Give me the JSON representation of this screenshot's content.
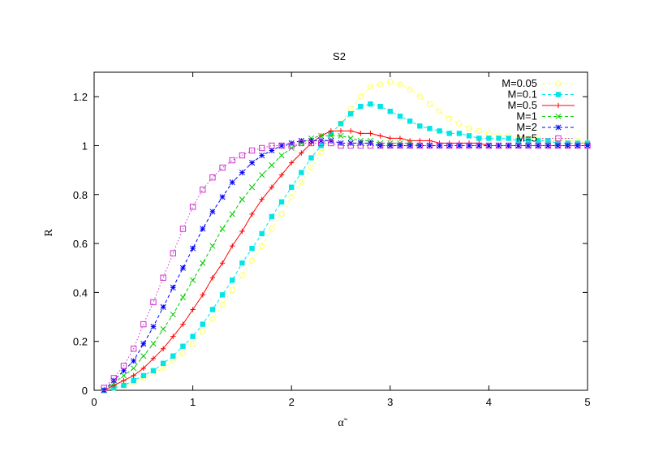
{
  "chart_data": {
    "type": "line",
    "title": "S2",
    "xlabel": "α̃",
    "ylabel": "R",
    "xlim": [
      0,
      5
    ],
    "ylim": [
      0,
      1.3
    ],
    "xticks": [
      0,
      1,
      2,
      3,
      4,
      5
    ],
    "yticks": [
      0,
      0.2,
      0.4,
      0.6,
      0.8,
      1,
      1.2
    ],
    "xtick_labels": [
      "0",
      "1",
      "2",
      "3",
      "4",
      "5"
    ],
    "ytick_labels": [
      "0",
      "0.2",
      "0.4",
      "0.6",
      "0.8",
      "1",
      "1.2"
    ],
    "legend_position": "top-right",
    "grid": false,
    "series": [
      {
        "name": "M=0.05",
        "color": "#ffff66",
        "marker": "open-circle",
        "line": "dashed",
        "x": [
          0.1,
          0.2,
          0.3,
          0.4,
          0.5,
          0.6,
          0.7,
          0.8,
          0.9,
          1.0,
          1.1,
          1.2,
          1.3,
          1.4,
          1.5,
          1.6,
          1.7,
          1.8,
          1.9,
          2.0,
          2.1,
          2.2,
          2.3,
          2.4,
          2.5,
          2.6,
          2.7,
          2.8,
          2.9,
          3.0,
          3.1,
          3.2,
          3.3,
          3.4,
          3.5,
          3.6,
          3.7,
          3.8,
          3.9,
          4.0,
          4.1,
          4.2,
          4.3,
          4.4,
          4.5,
          4.6,
          4.7,
          4.8,
          4.9,
          5.0
        ],
        "y": [
          0.0,
          0.01,
          0.02,
          0.03,
          0.05,
          0.07,
          0.09,
          0.12,
          0.15,
          0.19,
          0.24,
          0.29,
          0.35,
          0.41,
          0.47,
          0.53,
          0.59,
          0.66,
          0.72,
          0.79,
          0.85,
          0.91,
          0.97,
          1.03,
          1.09,
          1.15,
          1.2,
          1.24,
          1.25,
          1.26,
          1.25,
          1.23,
          1.2,
          1.17,
          1.14,
          1.11,
          1.09,
          1.07,
          1.06,
          1.05,
          1.04,
          1.04,
          1.03,
          1.03,
          1.03,
          1.02,
          1.02,
          1.02,
          1.02,
          1.01
        ]
      },
      {
        "name": "M=0.1",
        "color": "#00e5e5",
        "marker": "filled-square",
        "line": "dashed",
        "x": [
          0.1,
          0.2,
          0.3,
          0.4,
          0.5,
          0.6,
          0.7,
          0.8,
          0.9,
          1.0,
          1.1,
          1.2,
          1.3,
          1.4,
          1.5,
          1.6,
          1.7,
          1.8,
          1.9,
          2.0,
          2.1,
          2.2,
          2.3,
          2.4,
          2.5,
          2.6,
          2.7,
          2.8,
          2.9,
          3.0,
          3.1,
          3.2,
          3.3,
          3.4,
          3.5,
          3.6,
          3.7,
          3.8,
          3.9,
          4.0,
          4.1,
          4.2,
          4.3,
          4.4,
          4.5,
          4.6,
          4.7,
          4.8,
          4.9,
          5.0
        ],
        "y": [
          0.0,
          0.01,
          0.02,
          0.04,
          0.06,
          0.08,
          0.11,
          0.14,
          0.18,
          0.22,
          0.27,
          0.33,
          0.39,
          0.45,
          0.52,
          0.58,
          0.64,
          0.71,
          0.77,
          0.83,
          0.89,
          0.95,
          1.0,
          1.05,
          1.09,
          1.13,
          1.16,
          1.17,
          1.16,
          1.14,
          1.12,
          1.1,
          1.08,
          1.07,
          1.06,
          1.05,
          1.05,
          1.04,
          1.03,
          1.03,
          1.03,
          1.03,
          1.02,
          1.02,
          1.02,
          1.02,
          1.01,
          1.01,
          1.01,
          1.01
        ]
      },
      {
        "name": "M=0.5",
        "color": "#ff0000",
        "marker": "plus",
        "line": "solid",
        "x": [
          0.1,
          0.2,
          0.3,
          0.4,
          0.5,
          0.6,
          0.7,
          0.8,
          0.9,
          1.0,
          1.1,
          1.2,
          1.3,
          1.4,
          1.5,
          1.6,
          1.7,
          1.8,
          1.9,
          2.0,
          2.1,
          2.2,
          2.3,
          2.4,
          2.5,
          2.6,
          2.7,
          2.8,
          2.9,
          3.0,
          3.1,
          3.2,
          3.3,
          3.4,
          3.5,
          3.6,
          3.7,
          3.8,
          3.9,
          4.0,
          4.1,
          4.2,
          4.3,
          4.4,
          4.5,
          4.6,
          4.7,
          4.8,
          4.9,
          5.0
        ],
        "y": [
          0.0,
          0.02,
          0.04,
          0.06,
          0.09,
          0.13,
          0.17,
          0.22,
          0.27,
          0.33,
          0.39,
          0.46,
          0.52,
          0.59,
          0.65,
          0.72,
          0.78,
          0.83,
          0.88,
          0.93,
          0.97,
          1.01,
          1.04,
          1.06,
          1.06,
          1.06,
          1.05,
          1.05,
          1.04,
          1.03,
          1.03,
          1.02,
          1.02,
          1.02,
          1.01,
          1.01,
          1.01,
          1.01,
          1.01,
          1.0,
          1.0,
          1.0,
          1.0,
          1.0,
          1.0,
          1.0,
          1.0,
          1.0,
          1.0,
          1.0
        ]
      },
      {
        "name": "M=1",
        "color": "#00cc00",
        "marker": "cross",
        "line": "dashed",
        "x": [
          0.1,
          0.2,
          0.3,
          0.4,
          0.5,
          0.6,
          0.7,
          0.8,
          0.9,
          1.0,
          1.1,
          1.2,
          1.3,
          1.4,
          1.5,
          1.6,
          1.7,
          1.8,
          1.9,
          2.0,
          2.1,
          2.2,
          2.3,
          2.4,
          2.5,
          2.6,
          2.7,
          2.8,
          2.9,
          3.0,
          3.1,
          3.2,
          3.3,
          3.4,
          3.5,
          3.6,
          3.7,
          3.8,
          3.9,
          4.0,
          4.1,
          4.2,
          4.3,
          4.4,
          4.5,
          4.6,
          4.7,
          4.8,
          4.9,
          5.0
        ],
        "y": [
          0.0,
          0.03,
          0.06,
          0.09,
          0.14,
          0.19,
          0.25,
          0.31,
          0.38,
          0.45,
          0.52,
          0.59,
          0.66,
          0.72,
          0.78,
          0.83,
          0.88,
          0.92,
          0.96,
          0.99,
          1.01,
          1.03,
          1.04,
          1.04,
          1.04,
          1.03,
          1.02,
          1.02,
          1.01,
          1.01,
          1.01,
          1.01,
          1.0,
          1.0,
          1.0,
          1.0,
          1.0,
          1.0,
          1.0,
          1.0,
          1.0,
          1.0,
          1.0,
          1.0,
          1.0,
          1.0,
          1.0,
          1.0,
          1.0,
          1.0
        ]
      },
      {
        "name": "M=2",
        "color": "#0000ff",
        "marker": "star",
        "line": "dashed",
        "x": [
          0.1,
          0.2,
          0.3,
          0.4,
          0.5,
          0.6,
          0.7,
          0.8,
          0.9,
          1.0,
          1.1,
          1.2,
          1.3,
          1.4,
          1.5,
          1.6,
          1.7,
          1.8,
          1.9,
          2.0,
          2.1,
          2.2,
          2.3,
          2.4,
          2.5,
          2.6,
          2.7,
          2.8,
          2.9,
          3.0,
          3.1,
          3.2,
          3.3,
          3.4,
          3.5,
          3.6,
          3.7,
          3.8,
          3.9,
          4.0,
          4.1,
          4.2,
          4.3,
          4.4,
          4.5,
          4.6,
          4.7,
          4.8,
          4.9,
          5.0
        ],
        "y": [
          0.0,
          0.04,
          0.08,
          0.12,
          0.19,
          0.26,
          0.34,
          0.42,
          0.5,
          0.58,
          0.66,
          0.73,
          0.79,
          0.85,
          0.89,
          0.93,
          0.96,
          0.98,
          1.0,
          1.01,
          1.02,
          1.02,
          1.02,
          1.02,
          1.01,
          1.01,
          1.01,
          1.01,
          1.0,
          1.0,
          1.0,
          1.0,
          1.0,
          1.0,
          1.0,
          1.0,
          1.0,
          1.0,
          1.0,
          1.0,
          1.0,
          1.0,
          1.0,
          1.0,
          1.0,
          1.0,
          1.0,
          1.0,
          1.0,
          1.0
        ]
      },
      {
        "name": "M=5",
        "color": "#cc33cc",
        "marker": "open-square",
        "line": "dotted",
        "x": [
          0.1,
          0.2,
          0.3,
          0.4,
          0.5,
          0.6,
          0.7,
          0.8,
          0.9,
          1.0,
          1.1,
          1.2,
          1.3,
          1.4,
          1.5,
          1.6,
          1.7,
          1.8,
          1.9,
          2.0,
          2.1,
          2.2,
          2.3,
          2.4,
          2.5,
          2.6,
          2.7,
          2.8,
          2.9,
          3.0,
          3.1,
          3.2,
          3.3,
          3.4,
          3.5,
          3.6,
          3.7,
          3.8,
          3.9,
          4.0,
          4.1,
          4.2,
          4.3,
          4.4,
          4.5,
          4.6,
          4.7,
          4.8,
          4.9,
          5.0
        ],
        "y": [
          0.01,
          0.05,
          0.1,
          0.17,
          0.27,
          0.36,
          0.46,
          0.56,
          0.66,
          0.75,
          0.82,
          0.87,
          0.91,
          0.94,
          0.96,
          0.98,
          0.99,
          1.0,
          1.0,
          1.0,
          1.01,
          1.01,
          1.01,
          1.01,
          1.0,
          1.0,
          1.0,
          1.0,
          1.0,
          1.0,
          1.0,
          1.0,
          1.0,
          1.0,
          1.0,
          1.0,
          1.0,
          1.0,
          1.0,
          1.0,
          1.0,
          1.0,
          1.0,
          1.0,
          1.0,
          1.0,
          1.0,
          1.0,
          1.0,
          1.0
        ]
      }
    ]
  }
}
